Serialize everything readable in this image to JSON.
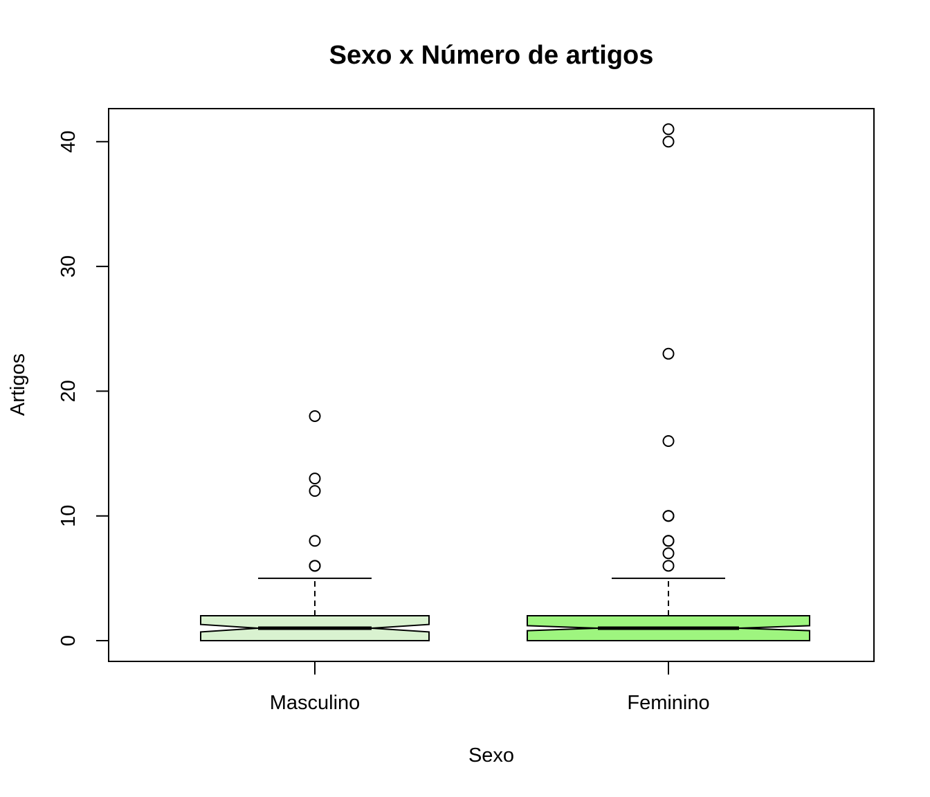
{
  "chart_data": {
    "type": "boxplot",
    "title": "Sexo x Número de artigos",
    "xlabel": "Sexo",
    "ylabel": "Artigos",
    "categories": [
      "Masculino",
      "Feminino"
    ],
    "ylim": [
      -1.6,
      42.7
    ],
    "yticks": [
      0,
      10,
      20,
      30,
      40
    ],
    "notch": true,
    "grid": false,
    "legend": "none",
    "boxes": [
      {
        "category": "Masculino",
        "min": 0,
        "q1": 0,
        "median": 1,
        "q3": 2,
        "max": 5,
        "notch_low": 0.7,
        "notch_high": 1.3,
        "outliers": [
          6,
          6,
          8,
          12,
          13,
          18
        ],
        "color": "#d9f2d0"
      },
      {
        "category": "Feminino",
        "min": 0,
        "q1": 0,
        "median": 1,
        "q3": 2,
        "max": 5,
        "notch_low": 0.8,
        "notch_high": 1.2,
        "outliers": [
          6,
          7,
          8,
          8,
          10,
          10,
          16,
          23,
          40,
          41
        ],
        "color": "#9ef57f"
      }
    ]
  }
}
